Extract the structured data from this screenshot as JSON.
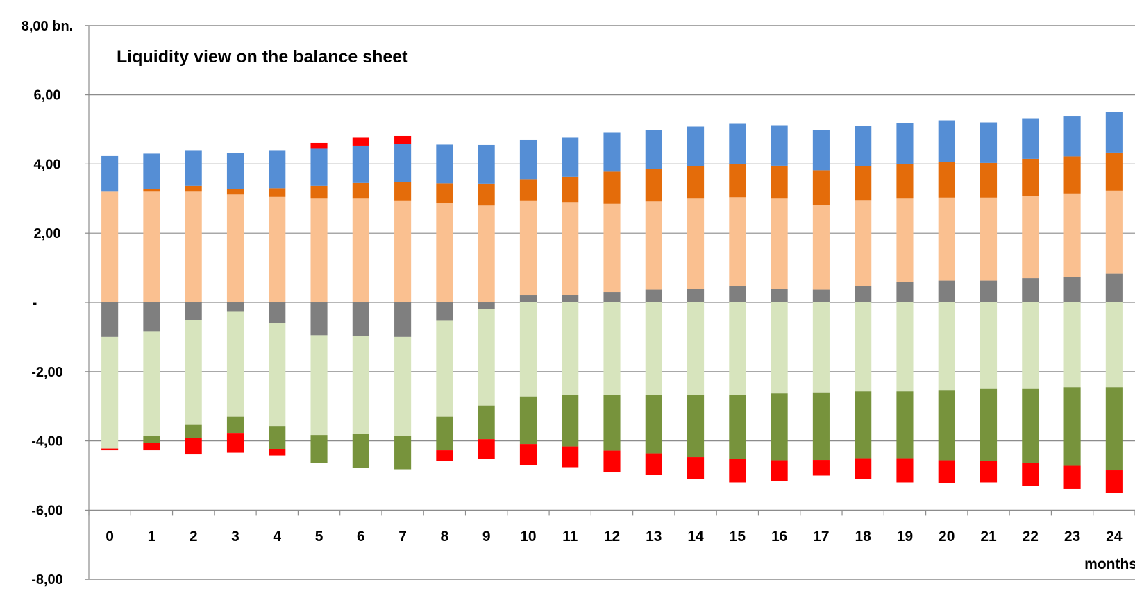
{
  "chart_data": {
    "type": "bar",
    "stacked": true,
    "title": "Liquidity view on the balance sheet",
    "xlabel": "months",
    "ylabel": "",
    "ylim": [
      -8,
      8
    ],
    "grid": true,
    "legend": "none",
    "yticks": [
      {
        "value": 8,
        "label": "8,00 bn."
      },
      {
        "value": 6,
        "label": "6,00"
      },
      {
        "value": 4,
        "label": "4,00"
      },
      {
        "value": 2,
        "label": "2,00"
      },
      {
        "value": 0,
        "label": "-"
      },
      {
        "value": -2,
        "label": "-2,00"
      },
      {
        "value": -4,
        "label": "-4,00"
      },
      {
        "value": -6,
        "label": "-6,00"
      },
      {
        "value": -8,
        "label": "-8,00"
      }
    ],
    "categories": [
      "0",
      "1",
      "2",
      "3",
      "4",
      "5",
      "6",
      "7",
      "8",
      "9",
      "10",
      "11",
      "12",
      "13",
      "14",
      "15",
      "16",
      "17",
      "18",
      "19",
      "20",
      "21",
      "22",
      "23",
      "24"
    ],
    "series": [
      {
        "color": "#7f7f7f",
        "values": [
          -1.0,
          -0.83,
          -0.52,
          -0.27,
          -0.6,
          -0.95,
          -0.98,
          -1.0,
          -0.53,
          -0.2,
          0.2,
          0.22,
          0.3,
          0.37,
          0.4,
          0.47,
          0.4,
          0.37,
          0.47,
          0.6,
          0.63,
          0.63,
          0.7,
          0.73,
          0.83
        ]
      },
      {
        "color": "#fac090",
        "values": [
          3.2,
          3.2,
          3.2,
          3.12,
          3.05,
          3.0,
          3.0,
          2.93,
          2.87,
          2.8,
          2.73,
          2.68,
          2.55,
          2.55,
          2.6,
          2.57,
          2.6,
          2.45,
          2.47,
          2.4,
          2.4,
          2.4,
          2.38,
          2.42,
          2.4
        ]
      },
      {
        "color": "#e46c0a",
        "values": [
          0.0,
          0.07,
          0.17,
          0.15,
          0.25,
          0.37,
          0.45,
          0.55,
          0.57,
          0.63,
          0.63,
          0.73,
          0.93,
          0.93,
          0.93,
          0.95,
          0.95,
          1.0,
          1.0,
          1.0,
          1.03,
          1.0,
          1.07,
          1.07,
          1.1
        ]
      },
      {
        "color": "#558ed5",
        "values": [
          1.03,
          1.03,
          1.03,
          1.05,
          1.1,
          1.07,
          1.08,
          1.1,
          1.12,
          1.12,
          1.13,
          1.13,
          1.12,
          1.12,
          1.15,
          1.17,
          1.17,
          1.15,
          1.15,
          1.18,
          1.2,
          1.17,
          1.17,
          1.17,
          1.17
        ]
      },
      {
        "color": "#ff0000",
        "values": [
          0,
          0,
          0,
          0,
          0,
          0.17,
          0.23,
          0.23,
          0,
          0,
          0,
          0,
          0,
          0,
          0,
          0,
          0,
          0,
          0,
          0,
          0,
          0,
          0,
          0,
          0
        ]
      },
      {
        "color": "#d7e4bd",
        "values": [
          -3.22,
          -3.02,
          -3.0,
          -3.03,
          -2.97,
          -2.88,
          -2.82,
          -2.85,
          -2.77,
          -2.78,
          -2.72,
          -2.68,
          -2.68,
          -2.68,
          -2.67,
          -2.67,
          -2.63,
          -2.6,
          -2.57,
          -2.57,
          -2.53,
          -2.5,
          -2.5,
          -2.45,
          -2.45
        ]
      },
      {
        "color": "#77933c",
        "values": [
          0,
          -0.2,
          -0.4,
          -0.47,
          -0.67,
          -0.8,
          -0.97,
          -0.97,
          -0.97,
          -0.97,
          -1.37,
          -1.48,
          -1.6,
          -1.68,
          -1.8,
          -1.85,
          -1.93,
          -1.95,
          -1.93,
          -1.93,
          -2.03,
          -2.07,
          -2.13,
          -2.27,
          -2.4
        ]
      },
      {
        "color": "#ff0000",
        "values": [
          -0.05,
          -0.22,
          -0.47,
          -0.57,
          -0.18,
          0,
          0,
          0,
          -0.3,
          -0.57,
          -0.6,
          -0.6,
          -0.63,
          -0.63,
          -0.63,
          -0.68,
          -0.6,
          -0.45,
          -0.6,
          -0.7,
          -0.67,
          -0.63,
          -0.67,
          -0.67,
          -0.65
        ]
      }
    ]
  }
}
